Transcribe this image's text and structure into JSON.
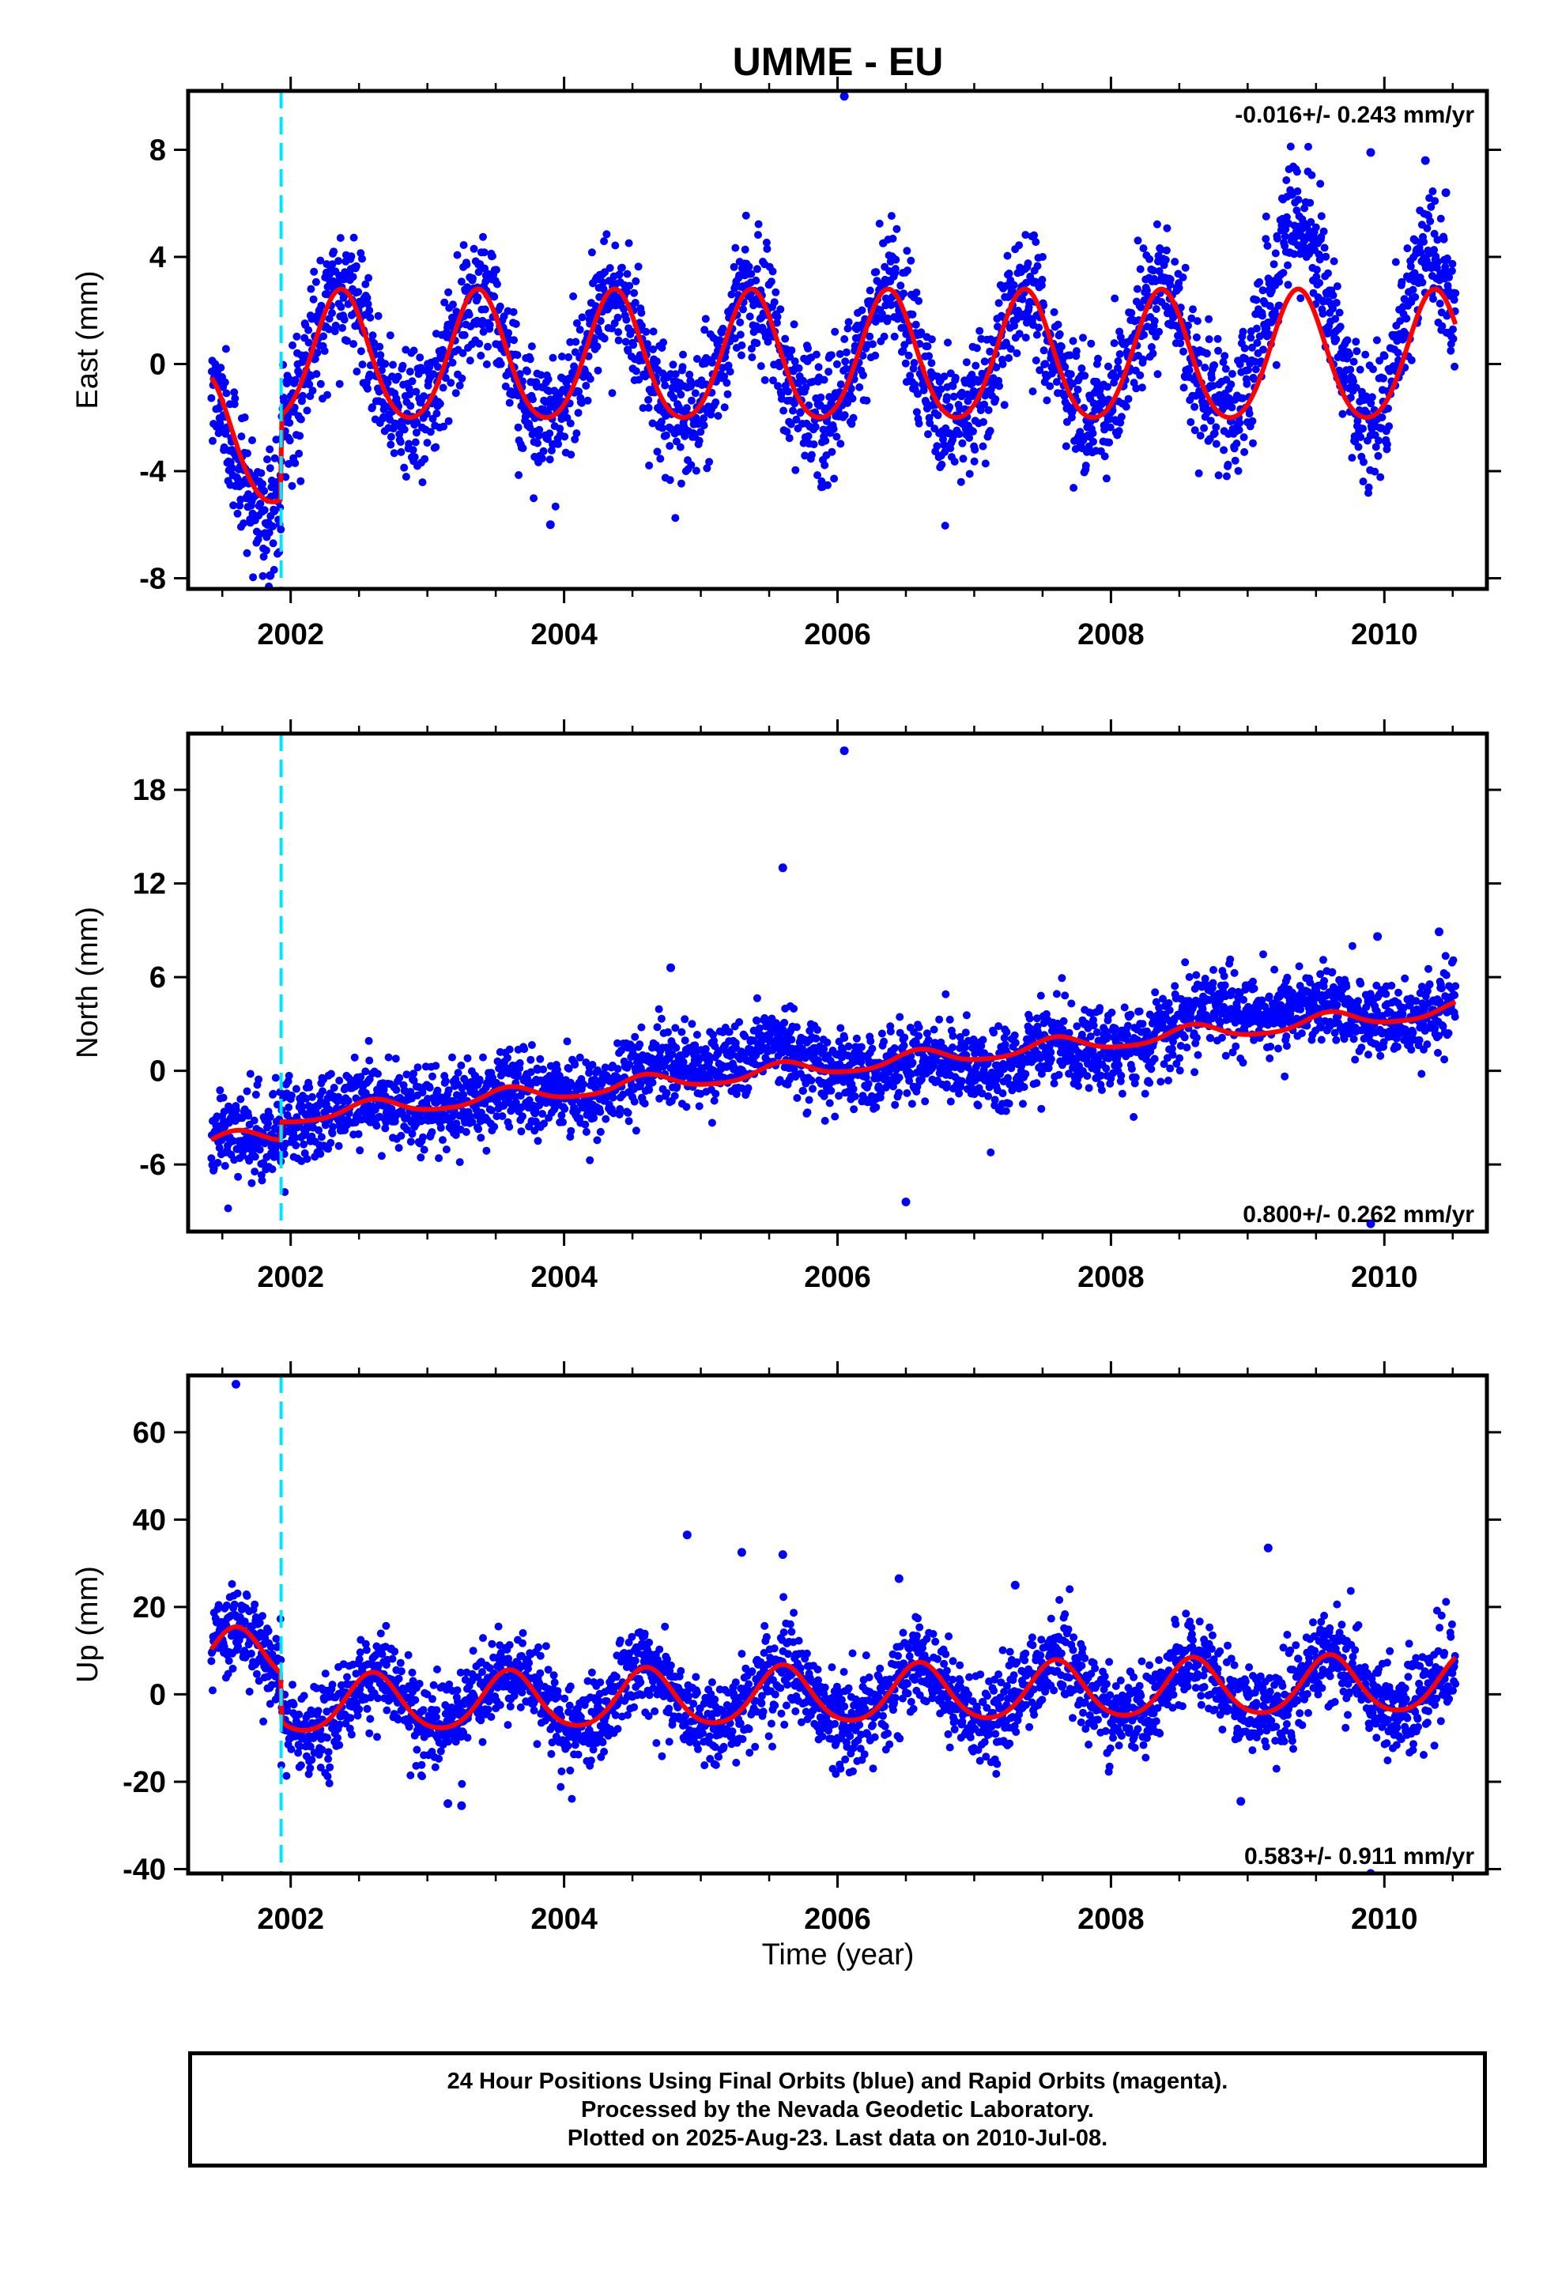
{
  "title": "UMME - EU",
  "colors": {
    "data_points": "#0000ff",
    "model_fit": "#ff0000",
    "offset_line": "#00e5ff",
    "frame": "#000000"
  },
  "x_axis": {
    "label": "Time (year)",
    "range": [
      2001.25,
      2010.75
    ],
    "ticks": [
      2002,
      2004,
      2006,
      2008,
      2010
    ],
    "tick_labels": [
      "2002",
      "2004",
      "2006",
      "2008",
      "2010"
    ],
    "minor_ticks": [
      2001.5,
      2002.5,
      2003,
      2003.5,
      2004.5,
      2005,
      2005.5,
      2006.5,
      2007,
      2007.5,
      2008.5,
      2009,
      2009.5,
      2010.5
    ]
  },
  "footer": {
    "lines": [
      "24 Hour Positions Using Final Orbits (blue) and Rapid Orbits (magenta).",
      "Processed by the Nevada Geodetic Laboratory.",
      "Plotted on 2025-Aug-23. Last data on 2010-Jul-08."
    ]
  },
  "chart_data": [
    {
      "type": "scatter",
      "component": "East",
      "ylabel": "East (mm)",
      "ylim": [
        -8.4,
        10.2
      ],
      "yticks": [
        -8,
        -4,
        0,
        4,
        8
      ],
      "ytick_labels": [
        "-8",
        "-4",
        "0",
        "4",
        "8"
      ],
      "rate_text": "-0.016+/- 0.243 mm/yr",
      "rate_position": "top-right",
      "equipment_change_epoch": 2001.93,
      "x_start": 2001.42,
      "x_end": 2010.52,
      "model": {
        "annual_amplitude": 2.4,
        "annual_peak": 2002.37,
        "semiannual_amplitude": 0.25,
        "trend": 0.0,
        "offset_before": -3.0,
        "offset_after": 0.15,
        "offset_epoch": 2001.93
      },
      "scatter_sd": 1.15,
      "point_count": 2900,
      "extra_drift": [
        [
          2001.42,
          2001.93,
          -0.8
        ],
        [
          2008.9,
          2009.8,
          2.6
        ],
        [
          2010.0,
          2010.5,
          1.8
        ]
      ],
      "outliers": [
        [
          2006.05,
          10.0
        ],
        [
          2009.9,
          7.9
        ],
        [
          2010.3,
          7.6
        ],
        [
          2010.45,
          6.4
        ],
        [
          2003.9,
          -6.0
        ],
        [
          2001.85,
          -7.9
        ]
      ],
      "series": [
        {
          "name": "Final Orbits",
          "color": "#0000ff"
        },
        {
          "name": "Model",
          "color": "#ff0000"
        }
      ]
    },
    {
      "type": "scatter",
      "component": "North",
      "ylabel": "North (mm)",
      "ylim": [
        -10.3,
        21.6
      ],
      "yticks": [
        -6,
        0,
        6,
        12,
        18
      ],
      "ytick_labels": [
        "-6",
        "0",
        "6",
        "12",
        "18"
      ],
      "rate_text": "0.800+/- 0.262 mm/yr",
      "rate_position": "bottom-right",
      "equipment_change_epoch": 2001.93,
      "x_start": 2001.42,
      "x_end": 2010.52,
      "model": {
        "annual_amplitude": 0.5,
        "annual_peak": 2002.6,
        "semiannual_amplitude": 0.1,
        "trend": 0.8,
        "offset_before": -1.2,
        "offset_after": 0.0,
        "offset_epoch": 2001.93,
        "base_at_2002": -2.9
      },
      "scatter_sd": 1.25,
      "point_count": 2900,
      "extra_drift": [
        [
          2004.5,
          2006.0,
          1.2
        ],
        [
          2006.0,
          2008.2,
          -0.7
        ],
        [
          2008.3,
          2009.8,
          1.3
        ]
      ],
      "outliers": [
        [
          2006.05,
          20.5
        ],
        [
          2005.6,
          13.0
        ],
        [
          2006.5,
          -8.4
        ],
        [
          2009.9,
          -9.8
        ],
        [
          2010.4,
          8.9
        ],
        [
          2009.95,
          8.6
        ],
        [
          2004.78,
          6.6
        ]
      ],
      "series": [
        {
          "name": "Final Orbits",
          "color": "#0000ff"
        },
        {
          "name": "Model",
          "color": "#ff0000"
        }
      ]
    },
    {
      "type": "scatter",
      "component": "Up",
      "ylabel": "Up (mm)",
      "ylim": [
        -41,
        73
      ],
      "yticks": [
        -40,
        -20,
        0,
        20,
        40,
        60
      ],
      "ytick_labels": [
        "-40",
        "-20",
        "0",
        "20",
        "40",
        "60"
      ],
      "rate_text": "0.583+/- 0.911 mm/yr",
      "rate_position": "bottom-right",
      "equipment_change_epoch": 2001.93,
      "x_start": 2001.42,
      "x_end": 2010.52,
      "model": {
        "annual_amplitude": 6.5,
        "annual_peak": 2002.6,
        "semiannual_amplitude": 0.8,
        "trend": 0.58,
        "offset_before": 11.0,
        "offset_after": 0.0,
        "offset_epoch": 2001.93,
        "base_at_2002": -2.6
      },
      "scatter_sd": 5.0,
      "point_count": 2900,
      "extra_drift": [],
      "outliers": [
        [
          2001.6,
          71.0
        ],
        [
          2004.9,
          36.5
        ],
        [
          2009.15,
          33.5
        ],
        [
          2005.3,
          32.5
        ],
        [
          2005.6,
          32.0
        ],
        [
          2006.45,
          26.5
        ],
        [
          2007.3,
          25.0
        ],
        [
          2003.15,
          -25.0
        ],
        [
          2003.25,
          -25.5
        ],
        [
          2008.95,
          -24.5
        ],
        [
          2009.9,
          -41.0
        ]
      ],
      "series": [
        {
          "name": "Final Orbits",
          "color": "#0000ff"
        },
        {
          "name": "Model",
          "color": "#ff0000"
        }
      ]
    }
  ]
}
